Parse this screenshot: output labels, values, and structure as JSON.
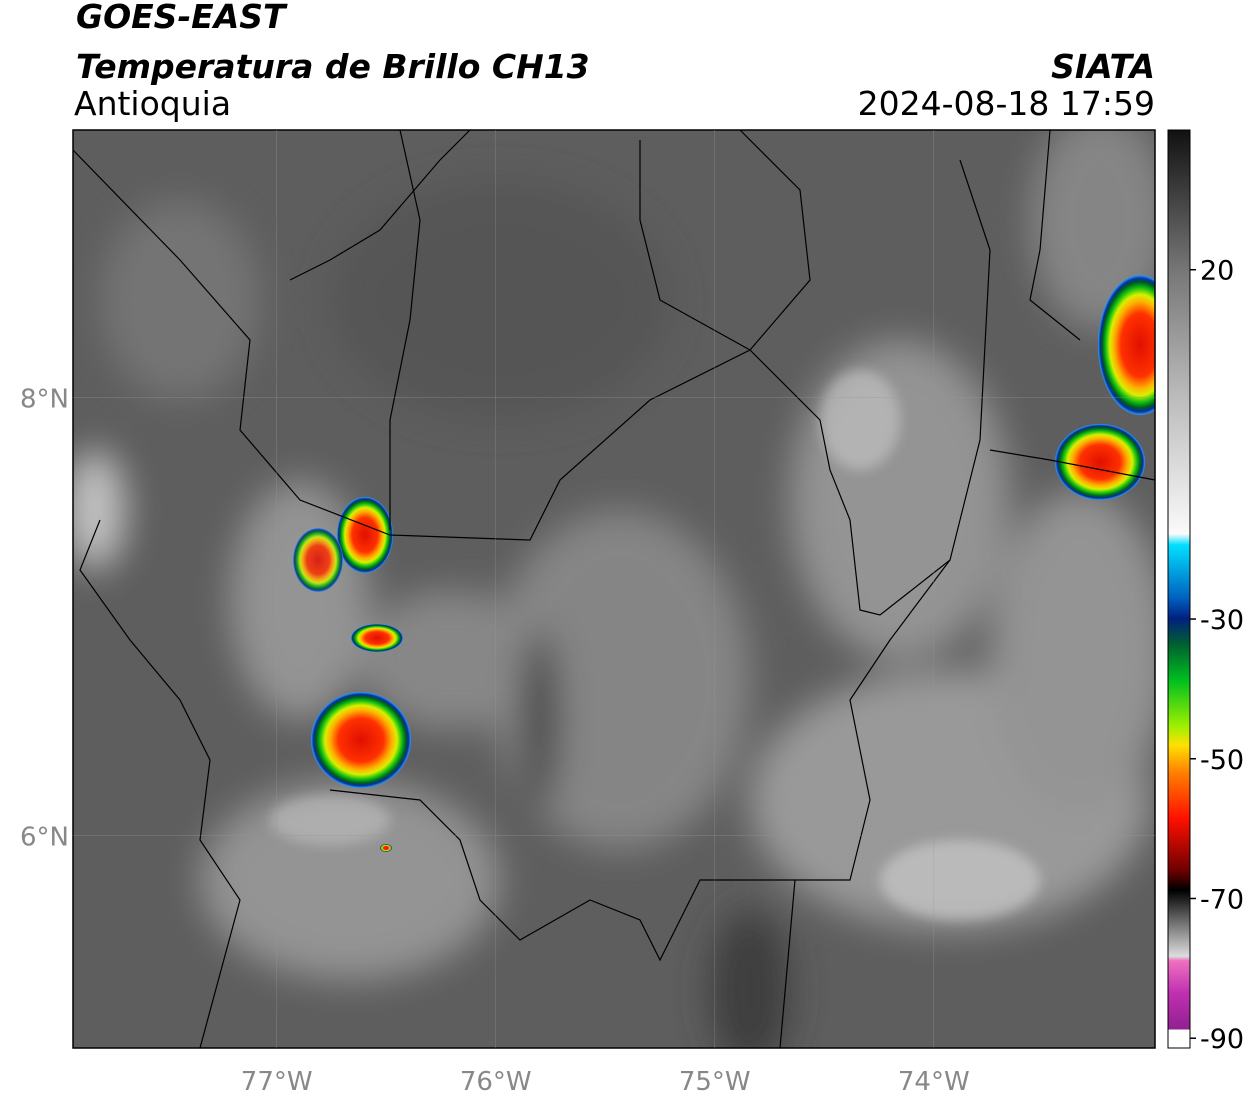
{
  "header": {
    "title": "GOES-EAST",
    "subtitle": "Temperatura de Brillo CH13",
    "region": "Antioquia",
    "organization": "SIATA",
    "timestamp": "2024-08-18 17:59"
  },
  "map": {
    "xlim": [
      -77.93,
      -72.99
    ],
    "ylim": [
      5.03,
      9.22
    ],
    "xticks": [
      {
        "value": -77,
        "label": "77°W"
      },
      {
        "value": -76,
        "label": "76°W"
      },
      {
        "value": -75,
        "label": "75°W"
      },
      {
        "value": -74,
        "label": "74°W"
      }
    ],
    "yticks": [
      {
        "value": 8,
        "label": "8°N"
      },
      {
        "value": 6,
        "label": "6°N"
      }
    ]
  },
  "colorbar": {
    "lim": [
      -91.4,
      40
    ],
    "ticks": [
      20,
      -30,
      -50,
      -70,
      -90
    ]
  }
}
